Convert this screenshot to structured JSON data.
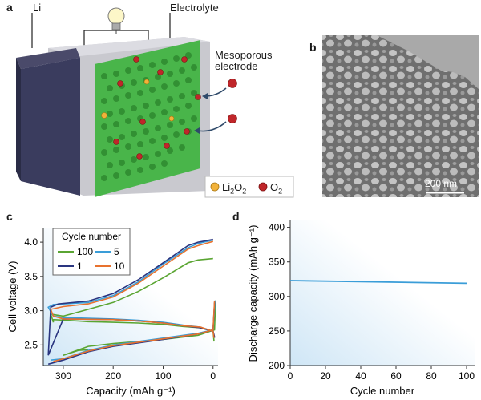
{
  "panels": {
    "a": {
      "letter": "a",
      "li_label": "Li",
      "electrolyte_label": "Electrolyte",
      "electrode_label_line1": "Mesoporous",
      "electrode_label_line2": "electrode",
      "legend": [
        {
          "label": "Li2O2",
          "color": "#f2b23a"
        },
        {
          "label": "O2",
          "color": "#c0262a"
        }
      ]
    },
    "b": {
      "letter": "b",
      "scale_bar": "200 nm"
    },
    "c": {
      "letter": "c"
    },
    "d": {
      "letter": "d"
    }
  },
  "chart_data": [
    {
      "id": "c",
      "type": "line",
      "xlabel": "Capacity (mAh g⁻¹)",
      "ylabel": "Cell voltage (V)",
      "xlim": [
        340,
        -10
      ],
      "ylim": [
        2.2,
        4.2
      ],
      "x_ticks": [
        300,
        200,
        100,
        0
      ],
      "y_ticks": [
        2.5,
        3.0,
        3.5,
        4.0
      ],
      "legend_title": "Cycle number",
      "legend_position": "top-left",
      "series": [
        {
          "name": "100",
          "color": "#5aa532",
          "charge": [
            [
              -2,
              2.55
            ],
            [
              0,
              2.7
            ],
            [
              25,
              2.75
            ],
            [
              60,
              2.77
            ],
            [
              100,
              2.8
            ],
            [
              150,
              2.82
            ],
            [
              200,
              2.83
            ],
            [
              250,
              2.84
            ],
            [
              270,
              2.85
            ],
            [
              320,
              2.87
            ],
            [
              320,
              2.83
            ],
            [
              325,
              2.95
            ],
            [
              300,
              2.92
            ],
            [
              250,
              3.02
            ],
            [
              200,
              3.12
            ],
            [
              150,
              3.28
            ],
            [
              100,
              3.48
            ],
            [
              50,
              3.7
            ],
            [
              30,
              3.74
            ],
            [
              0,
              3.76
            ]
          ],
          "discharge": [
            [
              -5,
              3.15
            ],
            [
              -3,
              2.72
            ],
            [
              30,
              2.64
            ],
            [
              100,
              2.58
            ],
            [
              150,
              2.55
            ],
            [
              200,
              2.52
            ],
            [
              250,
              2.48
            ],
            [
              300,
              2.35
            ],
            [
              270,
              2.42
            ],
            [
              250,
              2.43
            ]
          ]
        },
        {
          "name": "5",
          "color": "#3a9dd8",
          "charge": [
            [
              -3,
              2.6
            ],
            [
              0,
              2.7
            ],
            [
              25,
              2.76
            ],
            [
              60,
              2.79
            ],
            [
              100,
              2.83
            ],
            [
              150,
              2.86
            ],
            [
              200,
              2.88
            ],
            [
              300,
              2.9
            ],
            [
              320,
              2.92
            ],
            [
              330,
              3.05
            ],
            [
              320,
              3.09
            ],
            [
              250,
              3.12
            ],
            [
              200,
              3.22
            ],
            [
              150,
              3.42
            ],
            [
              100,
              3.68
            ],
            [
              50,
              3.92
            ],
            [
              30,
              3.98
            ],
            [
              0,
              4.03
            ]
          ],
          "discharge": [
            [
              -4,
              3.15
            ],
            [
              0,
              2.72
            ],
            [
              30,
              2.67
            ],
            [
              100,
              2.6
            ],
            [
              150,
              2.55
            ],
            [
              200,
              2.5
            ],
            [
              250,
              2.42
            ],
            [
              300,
              2.3
            ],
            [
              325,
              2.28
            ]
          ]
        },
        {
          "name": "1",
          "color": "#2a3580",
          "charge": [
            [
              -3,
              2.62
            ],
            [
              0,
              2.7
            ],
            [
              25,
              2.75
            ],
            [
              60,
              2.78
            ],
            [
              100,
              2.82
            ],
            [
              150,
              2.85
            ],
            [
              200,
              2.87
            ],
            [
              300,
              2.88
            ],
            [
              330,
              2.35
            ],
            [
              325,
              3.05
            ],
            [
              310,
              3.1
            ],
            [
              250,
              3.14
            ],
            [
              200,
              3.25
            ],
            [
              150,
              3.45
            ],
            [
              100,
              3.7
            ],
            [
              50,
              3.95
            ],
            [
              30,
              4.0
            ],
            [
              0,
              4.04
            ]
          ],
          "discharge": [
            [
              -3,
              3.12
            ],
            [
              0,
              2.72
            ],
            [
              30,
              2.66
            ],
            [
              100,
              2.58
            ],
            [
              150,
              2.53
            ],
            [
              200,
              2.48
            ],
            [
              250,
              2.4
            ],
            [
              300,
              2.28
            ],
            [
              330,
              2.22
            ]
          ]
        },
        {
          "name": "10",
          "color": "#e8722e",
          "charge": [
            [
              -2,
              2.6
            ],
            [
              0,
              2.7
            ],
            [
              25,
              2.76
            ],
            [
              60,
              2.78
            ],
            [
              100,
              2.82
            ],
            [
              150,
              2.85
            ],
            [
              200,
              2.87
            ],
            [
              300,
              2.88
            ],
            [
              320,
              2.92
            ],
            [
              325,
              3.02
            ],
            [
              300,
              3.06
            ],
            [
              250,
              3.1
            ],
            [
              200,
              3.2
            ],
            [
              150,
              3.4
            ],
            [
              100,
              3.65
            ],
            [
              50,
              3.9
            ],
            [
              30,
              3.95
            ],
            [
              0,
              4.01
            ]
          ],
          "discharge": [
            [
              -3,
              3.14
            ],
            [
              0,
              2.72
            ],
            [
              30,
              2.66
            ],
            [
              100,
              2.59
            ],
            [
              150,
              2.54
            ],
            [
              200,
              2.49
            ],
            [
              250,
              2.41
            ],
            [
              300,
              2.3
            ],
            [
              320,
              2.26
            ]
          ]
        }
      ]
    },
    {
      "id": "d",
      "type": "line",
      "xlabel": "Cycle number",
      "ylabel": "Discharge capacity (mAh g⁻¹)",
      "xlim": [
        0,
        100
      ],
      "ylim": [
        200,
        410
      ],
      "x_ticks": [
        0,
        20,
        40,
        60,
        80,
        100
      ],
      "y_ticks": [
        200,
        250,
        300,
        350,
        400
      ],
      "series": [
        {
          "name": "",
          "color": "#3a9dd8",
          "x": [
            0,
            100
          ],
          "y": [
            323,
            319
          ]
        }
      ]
    }
  ]
}
